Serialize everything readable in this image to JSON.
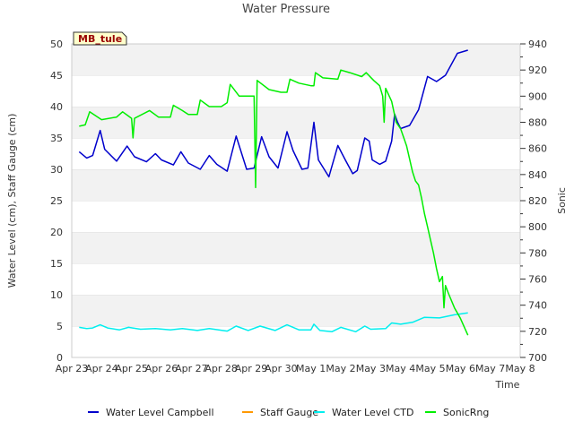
{
  "chart_data": {
    "type": "line",
    "title": "Water Pressure",
    "xlabel": "Time",
    "ylabel_left": "Water Level (cm), Staff Gauge (cm)",
    "ylabel_right": "Sonic",
    "annotation": "MB_tule",
    "x_ticks": [
      "Apr 23",
      "Apr 24",
      "Apr 25",
      "Apr 26",
      "Apr 27",
      "Apr 28",
      "Apr 29",
      "Apr 30",
      "May 1",
      "May 2",
      "May 3",
      "May 4",
      "May 5",
      "May 6",
      "May 7",
      "May 8"
    ],
    "xlim_days": [
      0,
      15
    ],
    "ylim_left": [
      0,
      50
    ],
    "ylim_right": [
      700,
      940
    ],
    "y_ticks_left": [
      0,
      5,
      10,
      15,
      20,
      25,
      30,
      35,
      40,
      45,
      50
    ],
    "y_ticks_right": [
      700,
      720,
      740,
      760,
      780,
      800,
      820,
      840,
      860,
      880,
      900,
      920,
      940
    ],
    "grid": true,
    "series": [
      {
        "name": "Water Level Campbell",
        "color": "#0000cc",
        "axis": "left",
        "points": [
          [
            0.25,
            32.8
          ],
          [
            0.5,
            31.8
          ],
          [
            0.7,
            32.2
          ],
          [
            0.95,
            36.2
          ],
          [
            1.1,
            33.2
          ],
          [
            1.5,
            31.3
          ],
          [
            1.85,
            33.7
          ],
          [
            2.1,
            32.0
          ],
          [
            2.5,
            31.2
          ],
          [
            2.8,
            32.5
          ],
          [
            3.0,
            31.5
          ],
          [
            3.4,
            30.7
          ],
          [
            3.65,
            32.8
          ],
          [
            3.9,
            31.0
          ],
          [
            4.3,
            30.0
          ],
          [
            4.6,
            32.2
          ],
          [
            4.85,
            30.8
          ],
          [
            5.2,
            29.7
          ],
          [
            5.5,
            35.3
          ],
          [
            5.85,
            30.0
          ],
          [
            6.1,
            30.2
          ],
          [
            6.35,
            35.2
          ],
          [
            6.6,
            32.0
          ],
          [
            6.9,
            30.2
          ],
          [
            7.2,
            36.0
          ],
          [
            7.4,
            33.0
          ],
          [
            7.7,
            30.0
          ],
          [
            7.9,
            30.2
          ],
          [
            8.1,
            37.5
          ],
          [
            8.25,
            31.5
          ],
          [
            8.6,
            28.8
          ],
          [
            8.9,
            33.8
          ],
          [
            9.15,
            31.5
          ],
          [
            9.4,
            29.3
          ],
          [
            9.55,
            29.8
          ],
          [
            9.8,
            35.0
          ],
          [
            9.95,
            34.5
          ],
          [
            10.05,
            31.5
          ],
          [
            10.3,
            30.8
          ],
          [
            10.5,
            31.3
          ],
          [
            10.7,
            34.5
          ],
          [
            10.8,
            38.8
          ],
          [
            10.9,
            37.5
          ],
          [
            11.0,
            36.5
          ],
          [
            11.3,
            37.0
          ],
          [
            11.6,
            39.5
          ],
          [
            11.9,
            44.8
          ],
          [
            12.2,
            44.0
          ],
          [
            12.5,
            45.0
          ],
          [
            12.9,
            48.5
          ],
          [
            13.25,
            49.0
          ]
        ]
      },
      {
        "name": "Staff Gauge",
        "color": "#ff9900",
        "axis": "left",
        "points": []
      },
      {
        "name": "Water Level CTD",
        "color": "#00eeee",
        "axis": "left",
        "points": [
          [
            0.25,
            4.8
          ],
          [
            0.5,
            4.6
          ],
          [
            0.7,
            4.7
          ],
          [
            0.95,
            5.2
          ],
          [
            1.2,
            4.7
          ],
          [
            1.6,
            4.4
          ],
          [
            1.9,
            4.8
          ],
          [
            2.3,
            4.5
          ],
          [
            2.8,
            4.6
          ],
          [
            3.3,
            4.4
          ],
          [
            3.7,
            4.6
          ],
          [
            4.2,
            4.3
          ],
          [
            4.6,
            4.6
          ],
          [
            5.2,
            4.2
          ],
          [
            5.5,
            5.0
          ],
          [
            5.9,
            4.3
          ],
          [
            6.3,
            5.0
          ],
          [
            6.8,
            4.3
          ],
          [
            7.2,
            5.2
          ],
          [
            7.6,
            4.4
          ],
          [
            8.0,
            4.4
          ],
          [
            8.1,
            5.3
          ],
          [
            8.3,
            4.3
          ],
          [
            8.7,
            4.1
          ],
          [
            9.0,
            4.8
          ],
          [
            9.5,
            4.1
          ],
          [
            9.8,
            5.0
          ],
          [
            10.0,
            4.5
          ],
          [
            10.5,
            4.6
          ],
          [
            10.7,
            5.5
          ],
          [
            11.0,
            5.3
          ],
          [
            11.4,
            5.6
          ],
          [
            11.8,
            6.4
          ],
          [
            12.3,
            6.3
          ],
          [
            12.8,
            6.8
          ],
          [
            13.25,
            7.1
          ]
        ]
      },
      {
        "name": "SonicRng",
        "color": "#00ee00",
        "axis": "right",
        "points": [
          [
            0.25,
            877
          ],
          [
            0.45,
            878
          ],
          [
            0.6,
            888
          ],
          [
            1.0,
            882
          ],
          [
            1.5,
            884
          ],
          [
            1.7,
            888
          ],
          [
            2.0,
            883
          ],
          [
            2.05,
            868
          ],
          [
            2.1,
            883
          ],
          [
            2.6,
            889
          ],
          [
            2.9,
            884
          ],
          [
            3.3,
            884
          ],
          [
            3.4,
            893
          ],
          [
            3.7,
            889
          ],
          [
            3.9,
            886
          ],
          [
            4.2,
            886
          ],
          [
            4.3,
            897
          ],
          [
            4.6,
            892
          ],
          [
            4.8,
            892
          ],
          [
            5.0,
            892
          ],
          [
            5.2,
            895
          ],
          [
            5.3,
            909
          ],
          [
            5.6,
            900
          ],
          [
            6.0,
            900
          ],
          [
            6.1,
            900
          ],
          [
            6.15,
            830
          ],
          [
            6.2,
            912
          ],
          [
            6.6,
            905
          ],
          [
            7.0,
            903
          ],
          [
            7.2,
            903
          ],
          [
            7.3,
            913
          ],
          [
            7.6,
            910
          ],
          [
            8.0,
            908
          ],
          [
            8.1,
            908
          ],
          [
            8.15,
            918
          ],
          [
            8.4,
            914
          ],
          [
            8.9,
            913
          ],
          [
            9.0,
            920
          ],
          [
            9.3,
            918
          ],
          [
            9.7,
            915
          ],
          [
            9.85,
            918
          ],
          [
            10.1,
            912
          ],
          [
            10.3,
            908
          ],
          [
            10.4,
            900
          ],
          [
            10.45,
            880
          ],
          [
            10.5,
            906
          ],
          [
            10.7,
            896
          ],
          [
            10.85,
            880
          ],
          [
            11.0,
            875
          ],
          [
            11.2,
            862
          ],
          [
            11.4,
            842
          ],
          [
            11.5,
            835
          ],
          [
            11.6,
            832
          ],
          [
            11.7,
            822
          ],
          [
            11.8,
            810
          ],
          [
            11.9,
            800
          ],
          [
            12.0,
            790
          ],
          [
            12.1,
            780
          ],
          [
            12.2,
            768
          ],
          [
            12.3,
            758
          ],
          [
            12.4,
            762
          ],
          [
            12.45,
            738
          ],
          [
            12.5,
            755
          ],
          [
            12.6,
            749
          ],
          [
            12.8,
            738
          ],
          [
            13.0,
            730
          ],
          [
            13.25,
            717
          ]
        ]
      }
    ],
    "legend_position": "bottom"
  }
}
